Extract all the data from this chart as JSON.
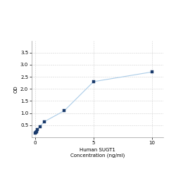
{
  "x": [
    0,
    0.05,
    0.1,
    0.2,
    0.4,
    0.8,
    2.5,
    5,
    10
  ],
  "y": [
    0.175,
    0.2,
    0.23,
    0.32,
    0.45,
    0.65,
    1.1,
    2.3,
    2.7
  ],
  "xlabel_line1": "Human SUGT1",
  "xlabel_line2": "Concentration (ng/ml)",
  "ylabel": "OD",
  "xlim": [
    -0.3,
    11
  ],
  "ylim": [
    0,
    4.0
  ],
  "yticks": [
    0.5,
    1.0,
    1.5,
    2.0,
    2.5,
    3.0,
    3.5
  ],
  "xtick_vals": [
    0,
    5,
    10
  ],
  "xtick_labels": [
    "0",
    "5",
    "10"
  ],
  "line_color": "#aacce8",
  "marker_color": "#1a3a6b",
  "marker_size": 3.5,
  "grid_color": "#d0d0d0",
  "background_color": "#ffffff",
  "axis_fontsize": 5,
  "tick_fontsize": 5
}
